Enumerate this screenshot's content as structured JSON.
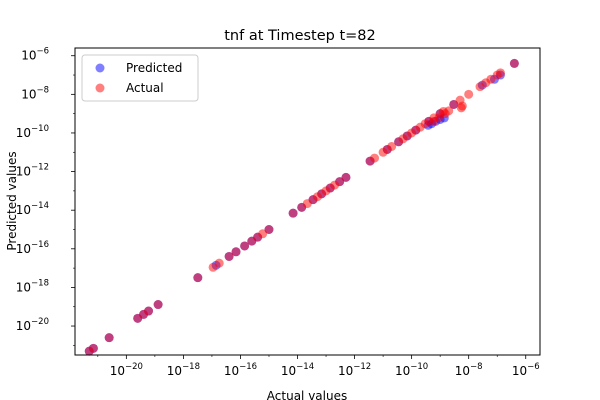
{
  "chart_data": {
    "type": "scatter",
    "title": "tnf at Timestep t=82",
    "xlabel": "Actual values",
    "ylabel": "Predicted values",
    "xscale": "log",
    "yscale": "log",
    "xlim_exp": [
      -21.8,
      -5.5
    ],
    "ylim_exp": [
      -21.5,
      -5.6
    ],
    "x_tick_exponents": [
      -20,
      -18,
      -16,
      -14,
      -12,
      -10,
      -8,
      -6
    ],
    "y_tick_exponents": [
      -20,
      -18,
      -16,
      -14,
      -12,
      -10,
      -8,
      -6
    ],
    "tick_base": "10",
    "grid": false,
    "legend_position": "upper left",
    "series": [
      {
        "name": "Predicted",
        "color": "#0000ff",
        "alpha": 0.5,
        "points": [
          [
            5e-22,
            5e-22
          ],
          [
            7e-22,
            7e-22
          ],
          [
            2.5e-21,
            2.5e-21
          ],
          [
            2.5e-20,
            2.5e-20
          ],
          [
            4e-20,
            4e-20
          ],
          [
            6e-20,
            6e-20
          ],
          [
            1.3e-19,
            1.3e-19
          ],
          [
            3.2e-18,
            3.2e-18
          ],
          [
            1.4e-17,
            1.4e-17
          ],
          [
            4e-17,
            4e-17
          ],
          [
            7e-17,
            7e-17
          ],
          [
            1.4e-16,
            1.4e-16
          ],
          [
            2.5e-16,
            2.5e-16
          ],
          [
            4e-16,
            4e-16
          ],
          [
            1e-15,
            1e-15
          ],
          [
            7e-15,
            7e-15
          ],
          [
            1.4e-14,
            1.4e-14
          ],
          [
            3.5e-14,
            3.5e-14
          ],
          [
            7e-14,
            7e-14
          ],
          [
            1.4e-13,
            1.4e-13
          ],
          [
            3e-13,
            3e-13
          ],
          [
            5e-13,
            5e-13
          ],
          [
            3.5e-12,
            3.5e-12
          ],
          [
            1.4e-11,
            1.4e-11
          ],
          [
            3.5e-11,
            3.5e-11
          ],
          [
            7e-11,
            7e-11
          ],
          [
            1.4e-10,
            1.4e-10
          ],
          [
            4e-10,
            4e-10
          ],
          [
            1e-09,
            1e-09
          ],
          [
            3e-09,
            3e-09
          ],
          [
            3.8e-10,
            2.5e-10
          ],
          [
            5e-10,
            3e-10
          ],
          [
            7e-10,
            4e-10
          ],
          [
            1e-09,
            5e-10
          ],
          [
            1.4e-09,
            6e-10
          ],
          [
            3e-08,
            3e-08
          ],
          [
            8e-08,
            6e-08
          ],
          [
            1.3e-07,
            1e-07
          ],
          [
            4e-07,
            4e-07
          ]
        ]
      },
      {
        "name": "Actual",
        "color": "#ff0000",
        "alpha": 0.5,
        "points": [
          [
            5e-22,
            5e-22
          ],
          [
            7e-22,
            7e-22
          ],
          [
            2.5e-21,
            2.5e-21
          ],
          [
            2.5e-20,
            2.5e-20
          ],
          [
            4e-20,
            4e-20
          ],
          [
            6e-20,
            6e-20
          ],
          [
            1.3e-19,
            1.3e-19
          ],
          [
            3.2e-18,
            3.2e-18
          ],
          [
            1.1e-17,
            1.1e-17
          ],
          [
            1.8e-17,
            1.8e-17
          ],
          [
            4e-17,
            4e-17
          ],
          [
            7e-17,
            7e-17
          ],
          [
            1.4e-16,
            1.4e-16
          ],
          [
            2.5e-16,
            2.5e-16
          ],
          [
            4e-16,
            4e-16
          ],
          [
            6e-16,
            6e-16
          ],
          [
            1e-15,
            1e-15
          ],
          [
            7e-15,
            7e-15
          ],
          [
            1.4e-14,
            1.4e-14
          ],
          [
            2.2e-14,
            2.2e-14
          ],
          [
            3.5e-14,
            3.5e-14
          ],
          [
            5e-14,
            5e-14
          ],
          [
            7e-14,
            7e-14
          ],
          [
            1e-13,
            1e-13
          ],
          [
            1.4e-13,
            1.4e-13
          ],
          [
            2e-13,
            2e-13
          ],
          [
            3e-13,
            3e-13
          ],
          [
            5e-13,
            5e-13
          ],
          [
            3.5e-12,
            3.5e-12
          ],
          [
            5e-12,
            5e-12
          ],
          [
            1e-11,
            1e-11
          ],
          [
            1.4e-11,
            1.4e-11
          ],
          [
            2e-11,
            2e-11
          ],
          [
            3.5e-11,
            3.5e-11
          ],
          [
            5e-11,
            5e-11
          ],
          [
            7e-11,
            7e-11
          ],
          [
            1e-10,
            1e-10
          ],
          [
            1.4e-10,
            1.4e-10
          ],
          [
            2e-10,
            2e-10
          ],
          [
            3e-10,
            3e-10
          ],
          [
            4e-10,
            4e-10
          ],
          [
            6e-10,
            6e-10
          ],
          [
            1e-09,
            1e-09
          ],
          [
            1.3e-09,
            1.3e-09
          ],
          [
            3e-09,
            3e-09
          ],
          [
            5e-09,
            5e-09
          ],
          [
            1e-08,
            1e-08
          ],
          [
            2.5e-08,
            2.5e-08
          ],
          [
            4e-08,
            4e-08
          ],
          [
            6e-08,
            6e-08
          ],
          [
            1e-07,
            1e-07
          ],
          [
            1.3e-07,
            1.3e-07
          ],
          [
            4e-07,
            4e-07
          ],
          [
            6e-10,
            4e-10
          ],
          [
            9e-10,
            6e-10
          ],
          [
            1.5e-09,
            1e-09
          ],
          [
            2e-09,
            1.4e-09
          ],
          [
            5.5e-09,
            2e-09
          ],
          [
            6e-09,
            2.5e-09
          ]
        ]
      }
    ]
  }
}
